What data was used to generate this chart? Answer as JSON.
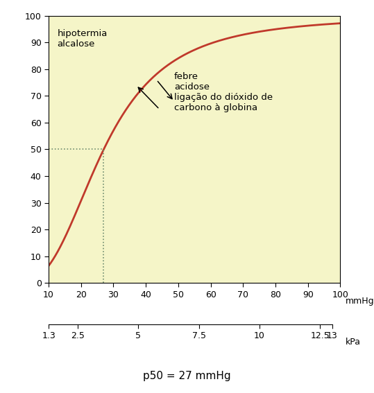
{
  "bg_color": "#f5f5c8",
  "curve_color": "#c0392b",
  "dotted_line_color": "#6e8c6e",
  "xlim": [
    10,
    100
  ],
  "ylim": [
    0,
    100
  ],
  "xticks_mmhg": [
    10,
    20,
    30,
    40,
    50,
    60,
    70,
    80,
    90,
    100
  ],
  "yticks": [
    0,
    10,
    20,
    30,
    40,
    50,
    60,
    70,
    80,
    90,
    100
  ],
  "kpa_ticks_pos": [
    1.3,
    2.5,
    5.0,
    7.5,
    10.0,
    12.5,
    13.0
  ],
  "kpa_ticks_labels": [
    "1.3",
    "2.5",
    "5",
    "7.5",
    "10",
    "12.5",
    "13"
  ],
  "p50_mmhg": 27,
  "hill_n": 2.7,
  "annotation_left_text": "hipotermia\nalcalose",
  "annotation_right_text": "febre\nacidose\nligação do dióxido de\ncarbono à globina",
  "bottom_label": "p50 = 27 mmHg",
  "mmhg_unit_label": "mmHg",
  "kpa_unit_label": "kPa",
  "curve_lw": 2.0,
  "tick_fontsize": 9,
  "annotation_fontsize": 9.5,
  "bottom_fontsize": 11
}
